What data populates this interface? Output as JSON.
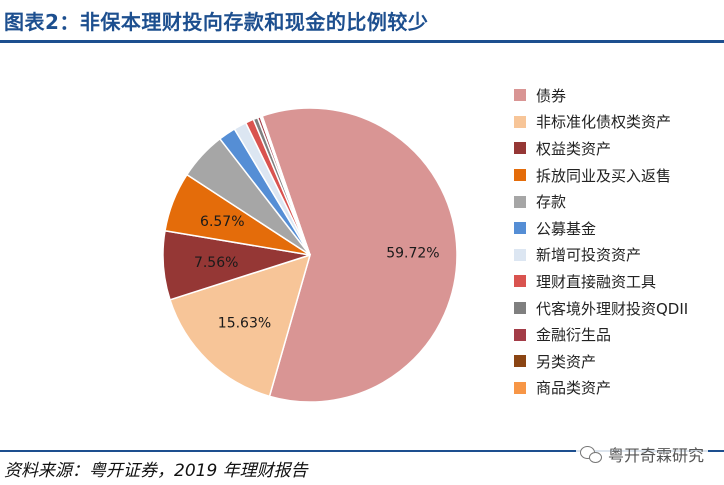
{
  "title": "图表2：非保本理财投向存款和现金的比例较少",
  "source": "资料来源：粤开证券，2019 年理财报告",
  "watermark": "粤开奇霖研究",
  "chart_data": {
    "type": "pie",
    "start_angle_deg": -19,
    "legend_position": "right",
    "slices": [
      {
        "label": "债券",
        "value": 59.72,
        "color": "#d99594",
        "data_label": "59.72%"
      },
      {
        "label": "非标准化债权类资产",
        "value": 15.63,
        "color": "#f7c598",
        "data_label": "15.63%"
      },
      {
        "label": "权益类资产",
        "value": 7.56,
        "color": "#953735",
        "data_label": "7.56%"
      },
      {
        "label": "拆放同业及买入返售",
        "value": 6.57,
        "color": "#e46c0a",
        "data_label": "6.57%"
      },
      {
        "label": "存款",
        "value": 5.3,
        "color": "#a6a6a6",
        "data_label": ""
      },
      {
        "label": "公募基金",
        "value": 1.9,
        "color": "#558ed5",
        "data_label": ""
      },
      {
        "label": "新增可投资资产",
        "value": 1.4,
        "color": "#dce6f2",
        "data_label": ""
      },
      {
        "label": "理财直接融资工具",
        "value": 0.9,
        "color": "#d9534f",
        "data_label": ""
      },
      {
        "label": "代客境外理财投资QDII",
        "value": 0.5,
        "color": "#7f7f7f",
        "data_label": ""
      },
      {
        "label": "金融衍生品",
        "value": 0.3,
        "color": "#a33c47",
        "data_label": ""
      },
      {
        "label": "另类资产",
        "value": 0.12,
        "color": "#8b4513",
        "data_label": ""
      },
      {
        "label": "商品类资产",
        "value": 0.1,
        "color": "#f79646",
        "data_label": ""
      }
    ]
  }
}
